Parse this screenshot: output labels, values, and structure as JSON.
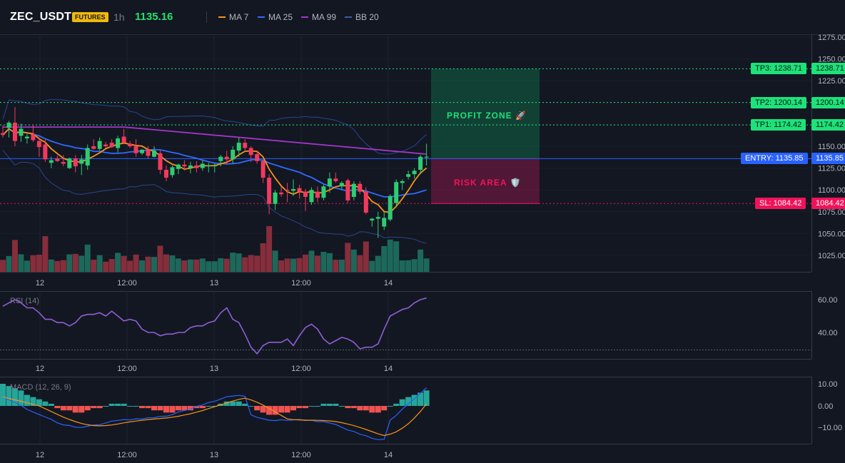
{
  "header": {
    "symbol": "ZEC_USDT",
    "badge": "FUTURES",
    "timeframe": "1h",
    "price": "1135.16",
    "legend": [
      {
        "label": "MA 7",
        "color": "#f7931a"
      },
      {
        "label": "MA 25",
        "color": "#2f6bff"
      },
      {
        "label": "MA 99",
        "color": "#a535c9"
      },
      {
        "label": "BB 20",
        "color": "#3d5aa8"
      }
    ]
  },
  "price_axis": [
    "1275.00",
    "1250.00",
    "1225.00",
    "1200.00",
    "1175.00",
    "1150.00",
    "1125.00",
    "1100.00",
    "1075.00",
    "1050.00",
    "1025.00"
  ],
  "time_axis": [
    "12",
    "12:00",
    "13",
    "12:00",
    "14"
  ],
  "levels": {
    "tp3": {
      "label": "TP3: 1238.71",
      "axis": "1238.71",
      "value": 1238.71
    },
    "tp2": {
      "label": "TP2: 1200.14",
      "axis": "1200.14",
      "value": 1200.14
    },
    "tp1": {
      "label": "TP1: 1174.42",
      "axis": "1174.42",
      "value": 1174.42
    },
    "entry": {
      "label": "ENTRY: 1135.85",
      "axis": "1135.85",
      "value": 1135.85
    },
    "sl": {
      "label": "SL: 1084.42",
      "axis": "1084.42",
      "value": 1084.42
    }
  },
  "zones": {
    "profit": "PROFIT ZONE 🚀",
    "risk": "RISK AREA 🛡️"
  },
  "rsi": {
    "title": "RSI (14)",
    "axis": [
      "60.00",
      "40.00"
    ]
  },
  "macd": {
    "title": "MACD (12, 26, 9)",
    "axis": [
      "10.00",
      "0.00",
      "−10.00"
    ]
  },
  "colors": {
    "up": "#26a69a",
    "down": "#ef5350",
    "bull_candle": "#2ecc71",
    "bear_candle": "#f23a5e",
    "green": "#1de27a",
    "red": "#f0135a",
    "entry": "#2962ff"
  },
  "chart_data": {
    "type": "candlestick",
    "candles": [
      [
        1165,
        1174,
        1160,
        1163
      ],
      [
        1171,
        1179,
        1160,
        1177
      ],
      [
        1177,
        1195,
        1150,
        1156
      ],
      [
        1162,
        1176,
        1155,
        1170
      ],
      [
        1159,
        1164,
        1153,
        1161
      ],
      [
        1164,
        1175,
        1155,
        1157
      ],
      [
        1156,
        1160,
        1138,
        1149
      ],
      [
        1152,
        1158,
        1132,
        1135
      ],
      [
        1131,
        1138,
        1125,
        1134
      ],
      [
        1136,
        1139,
        1132,
        1133
      ],
      [
        1132,
        1140,
        1127,
        1130
      ],
      [
        1125,
        1137,
        1124,
        1136
      ],
      [
        1136,
        1140,
        1120,
        1127
      ],
      [
        1130,
        1140,
        1117,
        1135
      ],
      [
        1128,
        1152,
        1123,
        1148
      ],
      [
        1150,
        1158,
        1146,
        1147
      ],
      [
        1147,
        1160,
        1145,
        1156
      ],
      [
        1152,
        1155,
        1148,
        1150
      ],
      [
        1154,
        1158,
        1148,
        1149
      ],
      [
        1148,
        1162,
        1143,
        1159
      ],
      [
        1161,
        1170,
        1153,
        1154
      ],
      [
        1153,
        1156,
        1148,
        1150
      ],
      [
        1150,
        1158,
        1138,
        1142
      ],
      [
        1142,
        1147,
        1140,
        1146
      ],
      [
        1146,
        1150,
        1136,
        1139
      ],
      [
        1138,
        1150,
        1137,
        1145
      ],
      [
        1142,
        1145,
        1118,
        1123
      ],
      [
        1123,
        1128,
        1110,
        1114
      ],
      [
        1117,
        1128,
        1114,
        1126
      ],
      [
        1124,
        1130,
        1118,
        1129
      ],
      [
        1129,
        1134,
        1122,
        1127
      ],
      [
        1125,
        1132,
        1119,
        1128
      ],
      [
        1128,
        1133,
        1120,
        1125
      ],
      [
        1125,
        1134,
        1122,
        1130
      ],
      [
        1127,
        1131,
        1120,
        1128
      ],
      [
        1127,
        1131,
        1120,
        1128
      ],
      [
        1133,
        1140,
        1127,
        1138
      ],
      [
        1138,
        1145,
        1129,
        1135
      ],
      [
        1135,
        1150,
        1130,
        1146
      ],
      [
        1145,
        1160,
        1138,
        1154
      ],
      [
        1154,
        1158,
        1144,
        1148
      ],
      [
        1148,
        1150,
        1132,
        1140
      ],
      [
        1141,
        1145,
        1130,
        1133
      ],
      [
        1133,
        1135,
        1108,
        1114
      ],
      [
        1114,
        1118,
        1072,
        1084
      ],
      [
        1084,
        1100,
        1077,
        1097
      ],
      [
        1097,
        1104,
        1092,
        1095
      ],
      [
        1100,
        1108,
        1086,
        1099
      ],
      [
        1099,
        1112,
        1093,
        1101
      ],
      [
        1102,
        1106,
        1090,
        1098
      ],
      [
        1098,
        1101,
        1076,
        1092
      ],
      [
        1086,
        1103,
        1083,
        1100
      ],
      [
        1098,
        1104,
        1086,
        1091
      ],
      [
        1091,
        1106,
        1088,
        1104
      ],
      [
        1104,
        1120,
        1097,
        1113
      ],
      [
        1113,
        1120,
        1108,
        1110
      ],
      [
        1104,
        1110,
        1100,
        1108
      ],
      [
        1111,
        1113,
        1085,
        1088
      ],
      [
        1092,
        1110,
        1088,
        1107
      ],
      [
        1107,
        1110,
        1095,
        1098
      ],
      [
        1098,
        1103,
        1072,
        1074
      ],
      [
        1065,
        1068,
        1058,
        1067
      ],
      [
        1067,
        1075,
        1045,
        1069
      ],
      [
        1058,
        1075,
        1054,
        1068
      ],
      [
        1066,
        1095,
        1064,
        1093
      ],
      [
        1085,
        1112,
        1080,
        1109
      ],
      [
        1108,
        1112,
        1100,
        1110
      ],
      [
        1115,
        1122,
        1112,
        1118
      ],
      [
        1118,
        1125,
        1113,
        1122
      ],
      [
        1123,
        1140,
        1118,
        1138
      ],
      [
        1138,
        1153,
        1128,
        1138
      ]
    ]
  }
}
